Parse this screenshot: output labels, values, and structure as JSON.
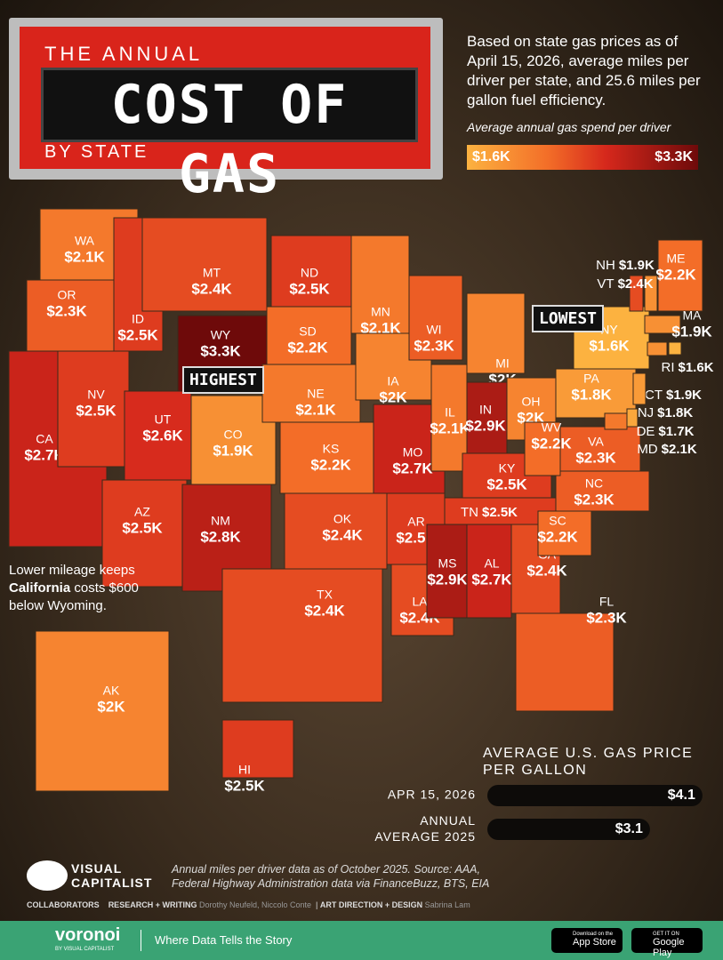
{
  "header": {
    "title_top": "THE ANNUAL",
    "title_main": "COST OF GAS",
    "title_bottom": "BY STATE"
  },
  "description": "Based on state gas prices as of April 15, 2026, average miles per driver per state, and 25.6 miles per gallon fuel efficiency.",
  "legend": {
    "title": "Average annual gas spend per driver",
    "min": {
      "value": 1600,
      "label": "$1.6K"
    },
    "max": {
      "value": 3300,
      "label": "$3.3K"
    }
  },
  "map": {
    "states": [
      {
        "abbr": "WA",
        "value": 2100,
        "label": "$2.1K"
      },
      {
        "abbr": "OR",
        "value": 2300,
        "label": "$2.3K"
      },
      {
        "abbr": "CA",
        "value": 2700,
        "label": "$2.7K"
      },
      {
        "abbr": "NV",
        "value": 2500,
        "label": "$2.5K"
      },
      {
        "abbr": "ID",
        "value": 2500,
        "label": "$2.5K"
      },
      {
        "abbr": "MT",
        "value": 2400,
        "label": "$2.4K"
      },
      {
        "abbr": "WY",
        "value": 3300,
        "label": "$3.3K"
      },
      {
        "abbr": "UT",
        "value": 2600,
        "label": "$2.6K"
      },
      {
        "abbr": "CO",
        "value": 1900,
        "label": "$1.9K"
      },
      {
        "abbr": "AZ",
        "value": 2500,
        "label": "$2.5K"
      },
      {
        "abbr": "NM",
        "value": 2800,
        "label": "$2.8K"
      },
      {
        "abbr": "ND",
        "value": 2500,
        "label": "$2.5K"
      },
      {
        "abbr": "SD",
        "value": 2200,
        "label": "$2.2K"
      },
      {
        "abbr": "NE",
        "value": 2100,
        "label": "$2.1K"
      },
      {
        "abbr": "KS",
        "value": 2200,
        "label": "$2.2K"
      },
      {
        "abbr": "OK",
        "value": 2400,
        "label": "$2.4K"
      },
      {
        "abbr": "TX",
        "value": 2400,
        "label": "$2.4K"
      },
      {
        "abbr": "MN",
        "value": 2100,
        "label": "$2.1K"
      },
      {
        "abbr": "IA",
        "value": 2000,
        "label": "$2K"
      },
      {
        "abbr": "MO",
        "value": 2700,
        "label": "$2.7K"
      },
      {
        "abbr": "AR",
        "value": 2500,
        "label": "$2.5K"
      },
      {
        "abbr": "LA",
        "value": 2400,
        "label": "$2.4K"
      },
      {
        "abbr": "WI",
        "value": 2300,
        "label": "$2.3K"
      },
      {
        "abbr": "IL",
        "value": 2100,
        "label": "$2.1K"
      },
      {
        "abbr": "MI",
        "value": 2000,
        "label": "$2K"
      },
      {
        "abbr": "IN",
        "value": 2900,
        "label": "$2.9K"
      },
      {
        "abbr": "OH",
        "value": 2000,
        "label": "$2K"
      },
      {
        "abbr": "KY",
        "value": 2500,
        "label": "$2.5K"
      },
      {
        "abbr": "TN",
        "value": 2500,
        "label": "$2.5K"
      },
      {
        "abbr": "MS",
        "value": 2900,
        "label": "$2.9K"
      },
      {
        "abbr": "AL",
        "value": 2700,
        "label": "$2.7K"
      },
      {
        "abbr": "GA",
        "value": 2400,
        "label": "$2.4K"
      },
      {
        "abbr": "FL",
        "value": 2300,
        "label": "$2.3K"
      },
      {
        "abbr": "SC",
        "value": 2200,
        "label": "$2.2K"
      },
      {
        "abbr": "NC",
        "value": 2300,
        "label": "$2.3K"
      },
      {
        "abbr": "VA",
        "value": 2300,
        "label": "$2.3K"
      },
      {
        "abbr": "WV",
        "value": 2200,
        "label": "$2.2K"
      },
      {
        "abbr": "PA",
        "value": 1800,
        "label": "$1.8K"
      },
      {
        "abbr": "NY",
        "value": 1600,
        "label": "$1.6K"
      },
      {
        "abbr": "ME",
        "value": 2200,
        "label": "$2.2K"
      },
      {
        "abbr": "NH",
        "value": 1900,
        "label": "$1.9K"
      },
      {
        "abbr": "VT",
        "value": 2400,
        "label": "$2.4K"
      },
      {
        "abbr": "MA",
        "value": 1900,
        "label": "$1.9K"
      },
      {
        "abbr": "RI",
        "value": 1600,
        "label": "$1.6K"
      },
      {
        "abbr": "CT",
        "value": 1900,
        "label": "$1.9K"
      },
      {
        "abbr": "NJ",
        "value": 1800,
        "label": "$1.8K"
      },
      {
        "abbr": "DE",
        "value": 1700,
        "label": "$1.7K"
      },
      {
        "abbr": "MD",
        "value": 2100,
        "label": "$2.1K"
      },
      {
        "abbr": "AK",
        "value": 2000,
        "label": "$2K"
      },
      {
        "abbr": "HI",
        "value": 2500,
        "label": "$2.5K"
      }
    ],
    "highest": "HIGHEST",
    "lowest": "LOWEST",
    "annotation": [
      "Lower mileage keeps ",
      "California",
      " costs $600 below Wyoming."
    ]
  },
  "gas_price": {
    "title": "AVERAGE U.S. GAS PRICE PER GALLON",
    "bars": [
      {
        "label": "APR 15, 2026",
        "value": 4.1,
        "value_label": "$4.1"
      },
      {
        "label": "ANNUAL AVERAGE 2025",
        "value": 3.1,
        "value_label": "$3.1"
      }
    ]
  },
  "footer": {
    "brand": "VISUAL CAPITALIST",
    "source": "Annual miles per driver data as of October 2025. Source: AAA, Federal Highway Administration data via FinanceBuzz, BTS, EIA",
    "collaborators": "COLLABORATORS",
    "research_role": "RESEARCH + WRITING",
    "research_names": "Dorothy Neufeld, Niccolo Conte",
    "design_role": "ART DIRECTION + DESIGN",
    "design_names": "Sabrina Lam",
    "voronoi": "voronoi",
    "voronoi_sub": "BY VISUAL CAPITALIST",
    "tagline": "Where Data Tells the Story",
    "app_store_top": "Download on the",
    "app_store": "App Store",
    "play_top": "GET IT ON",
    "play": "Google Play"
  }
}
